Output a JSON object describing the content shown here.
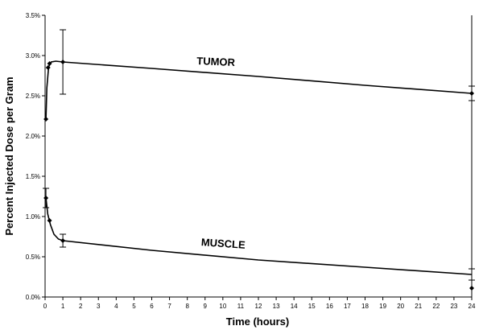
{
  "chart_data": {
    "type": "scatter",
    "title": "",
    "xlabel": "Time (hours)",
    "ylabel": "Percent Injected Dose per Gram",
    "xlim": [
      0,
      24
    ],
    "ylim": [
      0.0,
      3.5
    ],
    "x_ticks": [
      0,
      1,
      2,
      3,
      4,
      5,
      6,
      7,
      8,
      9,
      10,
      11,
      12,
      13,
      14,
      15,
      16,
      17,
      18,
      19,
      20,
      21,
      22,
      23,
      24
    ],
    "y_ticks": [
      "0.0%",
      "0.5%",
      "1.0%",
      "1.5%",
      "2.0%",
      "2.5%",
      "3.0%",
      "3.5%"
    ],
    "y_tick_values": [
      0.0,
      0.5,
      1.0,
      1.5,
      2.0,
      2.5,
      3.0,
      3.5
    ],
    "grid": false,
    "series": [
      {
        "name": "TUMOR",
        "points": [
          {
            "x": 0.05,
            "y": 2.21
          },
          {
            "x": 0.17,
            "y": 2.85
          },
          {
            "x": 0.25,
            "y": 2.9
          },
          {
            "x": 1.0,
            "y": 2.92,
            "err": 0.4
          },
          {
            "x": 24.0,
            "y": 2.53,
            "err": 0.09
          }
        ],
        "curve": [
          [
            0.05,
            2.21
          ],
          [
            0.1,
            2.6
          ],
          [
            0.2,
            2.86
          ],
          [
            0.35,
            2.92
          ],
          [
            0.6,
            2.93
          ],
          [
            1.0,
            2.92
          ],
          [
            6.0,
            2.84
          ],
          [
            12.0,
            2.74
          ],
          [
            18.0,
            2.63
          ],
          [
            24.0,
            2.53
          ]
        ]
      },
      {
        "name": "MUSCLE",
        "points": [
          {
            "x": 0.05,
            "y": 1.23,
            "err": 0.12
          },
          {
            "x": 0.25,
            "y": 0.95
          },
          {
            "x": 1.0,
            "y": 0.7,
            "err": 0.08
          },
          {
            "x": 24.0,
            "y": 0.11
          }
        ],
        "curve": [
          [
            0.05,
            1.23
          ],
          [
            0.15,
            1.03
          ],
          [
            0.3,
            0.9
          ],
          [
            0.5,
            0.78
          ],
          [
            0.75,
            0.72
          ],
          [
            1.0,
            0.7
          ],
          [
            6.0,
            0.58
          ],
          [
            12.0,
            0.46
          ],
          [
            18.0,
            0.37
          ],
          [
            24.0,
            0.28
          ]
        ],
        "extra_errorbars": [
          {
            "x": 24.0,
            "y": 0.28,
            "err": 0.07
          }
        ]
      }
    ]
  }
}
